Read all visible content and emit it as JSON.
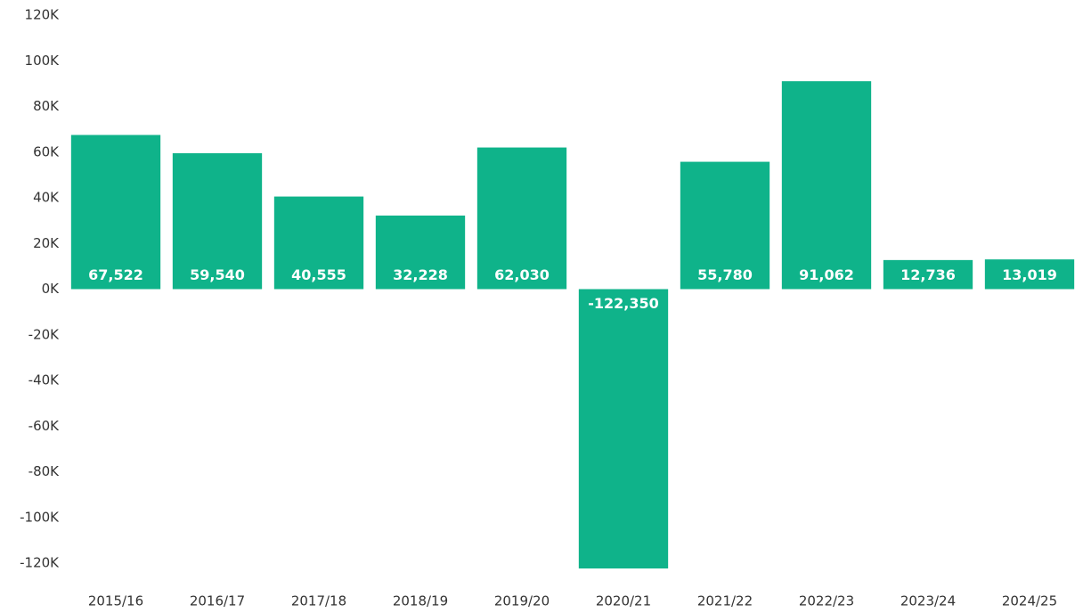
{
  "chart_data": {
    "type": "bar",
    "categories": [
      "2015/16",
      "2016/17",
      "2017/18",
      "2018/19",
      "2019/20",
      "2020/21",
      "2021/22",
      "2022/23",
      "2023/24",
      "2024/25"
    ],
    "values": [
      67522,
      59540,
      40555,
      32228,
      62030,
      -122350,
      55780,
      91062,
      12736,
      13019
    ],
    "value_labels": [
      "67,522",
      "59,540",
      "40,555",
      "32,228",
      "62,030",
      "-122,350",
      "55,780",
      "91,062",
      "12,736",
      "13,019"
    ],
    "color": "#0fb38a",
    "ylim": [
      -120000,
      120000
    ],
    "yticks": [
      {
        "value": -120000,
        "label": "-120K"
      },
      {
        "value": -100000,
        "label": "-100K"
      },
      {
        "value": -80000,
        "label": "-80K"
      },
      {
        "value": -60000,
        "label": "-60K"
      },
      {
        "value": -40000,
        "label": "-40K"
      },
      {
        "value": -20000,
        "label": "-20K"
      },
      {
        "value": 0,
        "label": "0K"
      },
      {
        "value": 20000,
        "label": "20K"
      },
      {
        "value": 40000,
        "label": "40K"
      },
      {
        "value": 60000,
        "label": "60K"
      },
      {
        "value": 80000,
        "label": "80K"
      },
      {
        "value": 100000,
        "label": "100K"
      },
      {
        "value": 120000,
        "label": "120K"
      }
    ],
    "grid": false
  }
}
